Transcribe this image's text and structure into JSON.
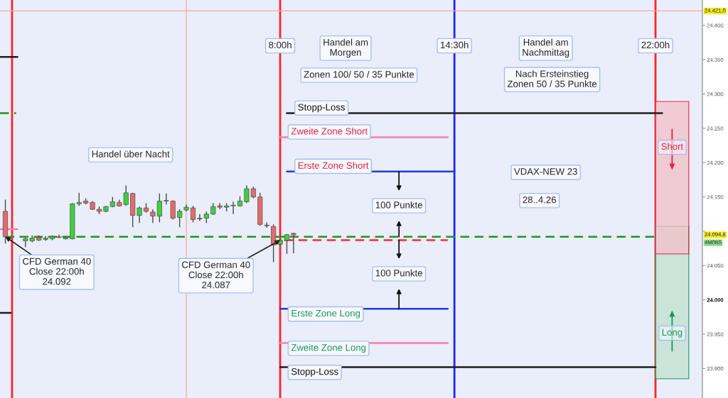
{
  "chart_data": {
    "type": "candlestick",
    "x": [
      -2.25,
      -1.5,
      -1.25,
      -1,
      -0.75,
      -0.5,
      -0.25,
      0,
      0.25,
      0.5,
      0.75,
      1,
      1.25,
      1.5,
      1.75,
      2,
      2.25,
      2.5,
      2.75,
      3,
      3.25,
      3.5,
      3.75,
      4,
      4.25,
      4.5,
      4.75,
      5,
      5.25,
      5.5,
      5.75,
      6,
      6.25,
      6.5,
      6.75,
      7,
      7.25,
      7.5,
      7.75,
      8,
      8.25,
      8.5
    ],
    "ohlc": [
      [
        24129,
        24146,
        24082,
        24092
      ],
      [
        24086,
        24091,
        24077,
        24089
      ],
      [
        24086,
        24094,
        24084,
        24090
      ],
      [
        24091,
        24094,
        24086,
        24087
      ],
      [
        24088,
        24093,
        24086,
        24090
      ],
      [
        24089,
        24094,
        24087,
        24092
      ],
      [
        24092,
        24095,
        24090,
        24091
      ],
      [
        24089,
        24093,
        24088,
        24091
      ],
      [
        24089,
        24141,
        24088,
        24140
      ],
      [
        24140,
        24156,
        24137,
        24142
      ],
      [
        24144,
        24148,
        24139,
        24141
      ],
      [
        24142,
        24144,
        24131,
        24132
      ],
      [
        24132,
        24136,
        24125,
        24129
      ],
      [
        24129,
        24137,
        24128,
        24136
      ],
      [
        24136,
        24150,
        24135,
        24143
      ],
      [
        24142,
        24146,
        24136,
        24137
      ],
      [
        24139,
        24167,
        24137,
        24156
      ],
      [
        24155,
        24156,
        24106,
        24123
      ],
      [
        24123,
        24136,
        24112,
        24134
      ],
      [
        24134,
        24141,
        24127,
        24129
      ],
      [
        24128,
        24132,
        24112,
        24122
      ],
      [
        24122,
        24155,
        24113,
        24144
      ],
      [
        24145,
        24155,
        24139,
        24144
      ],
      [
        24144,
        24145,
        24117,
        24119
      ],
      [
        24120,
        24132,
        24106,
        24129
      ],
      [
        24131,
        24139,
        24129,
        24135
      ],
      [
        24134,
        24137,
        24113,
        24117
      ],
      [
        24119,
        24125,
        24115,
        24118
      ],
      [
        24119,
        24129,
        24112,
        24125
      ],
      [
        24125,
        24141,
        24124,
        24136
      ],
      [
        24137,
        24141,
        24132,
        24135
      ],
      [
        24135,
        24141,
        24129,
        24137
      ],
      [
        24137,
        24143,
        24125,
        24138
      ],
      [
        24137,
        24151,
        24136,
        24144
      ],
      [
        24143,
        24167,
        24141,
        24162
      ],
      [
        24162,
        24165,
        24148,
        24150
      ],
      [
        24150,
        24156,
        24108,
        24110
      ],
      [
        24109,
        24113,
        24105,
        24108
      ],
      [
        24107,
        24110,
        24055,
        24080
      ],
      [
        24081,
        24088,
        24079,
        24087
      ],
      [
        24087,
        24096,
        24067,
        24095
      ],
      [
        24097,
        24098,
        24068,
        24094.8
      ]
    ],
    "colors": [
      "#e46b6b",
      "#3fcf3f",
      "#3fcf3f",
      "#e46b6b",
      "#3fcf3f",
      "#3fcf3f",
      "#e46b6b",
      "#3fcf3f",
      "#3fcf3f",
      "#3fcf3f",
      "#e46b6b",
      "#e46b6b",
      "#e46b6b",
      "#3fcf3f",
      "#3fcf3f",
      "#e46b6b",
      "#3fcf3f",
      "#e46b6b",
      "#3fcf3f",
      "#e46b6b",
      "#e46b6b",
      "#3fcf3f",
      "#e46b6b",
      "#e46b6b",
      "#3fcf3f",
      "#3fcf3f",
      "#e46b6b",
      "#e46b6b",
      "#3fcf3f",
      "#3fcf3f",
      "#e46b6b",
      "#3fcf3f",
      "#3fcf3f",
      "#3fcf3f",
      "#3fcf3f",
      "#e46b6b",
      "#e46b6b",
      "#e46b6b",
      "#e46b6b",
      "#3fcf3f",
      "#3fcf3f",
      "#e46b6b"
    ],
    "xlim": [
      -2.45,
      23.75
    ],
    "ylim": [
      23857,
      24437
    ],
    "yticks": [
      {
        "value": 23900,
        "label": "23.900"
      },
      {
        "value": 23950,
        "label": "23.950"
      },
      {
        "value": 24000,
        "label": "24.000"
      },
      {
        "value": 24050,
        "label": "24.050"
      },
      {
        "value": 24100,
        "label": null
      },
      {
        "value": 24150,
        "label": "24.150"
      },
      {
        "value": 24200,
        "label": "24.200"
      },
      {
        "value": 24250,
        "label": "24.250"
      },
      {
        "value": 24300,
        "label": "24.300"
      },
      {
        "value": 24350,
        "label": "24.350"
      },
      {
        "value": 24400,
        "label": "24.400"
      }
    ],
    "tick_labels": "y",
    "ref_lines": [
      {
        "axis": "x",
        "value": -2,
        "color": "#ff2424"
      },
      {
        "axis": "x",
        "value": 4.5,
        "color": "#f6a9a9"
      },
      {
        "axis": "x",
        "value": 8,
        "label": "8:00h",
        "color": "#ff2424"
      },
      {
        "axis": "x",
        "value": 14.5,
        "label": "14:30h",
        "color": "#2424f0"
      },
      {
        "axis": "x",
        "value": 22,
        "label": "22:00h",
        "color": "#ff2424"
      },
      {
        "axis": "y",
        "value": 24421,
        "label": "24.421,0",
        "color": "#f6a9a9"
      }
    ],
    "series": [
      {
        "type": "line",
        "color": "#1e1e1e",
        "x": [
          8.25,
          22.25
        ],
        "values": [
          24272,
          24272
        ]
      },
      {
        "type": "line",
        "color": "#f77fae",
        "x": [
          8,
          14.25
        ],
        "values": [
          24237,
          24237
        ]
      },
      {
        "type": "line",
        "color": "#1f3ae0",
        "x": [
          8.25,
          14.5
        ],
        "values": [
          24187,
          24187
        ]
      },
      {
        "type": "line",
        "color": "#1e961e",
        "line_style": "dashed",
        "x": [
          -2.25,
          22
        ],
        "values": [
          24092,
          24092
        ]
      },
      {
        "type": "line",
        "color": "#ff2a2a",
        "line_style": "dashed",
        "x": [
          8.15,
          14.25
        ],
        "values": [
          24087,
          24087
        ]
      },
      {
        "type": "line",
        "color": "#1f3ae0",
        "x": [
          8,
          14.25
        ],
        "values": [
          23987,
          23987
        ]
      },
      {
        "type": "line",
        "color": "#f77fae",
        "x": [
          8,
          14.25
        ],
        "values": [
          23937,
          23937
        ]
      },
      {
        "type": "line",
        "color": "#1e1e1e",
        "x": [
          8,
          22
        ],
        "values": [
          23902,
          23902
        ]
      },
      {
        "type": "line",
        "color": "#1e1e1e",
        "x": [
          -2.45,
          -1.8
        ],
        "values": [
          24354,
          24354
        ]
      },
      {
        "type": "line",
        "color": "#1e961e",
        "line_style": "dashed",
        "x": [
          -2.45,
          -1.85
        ],
        "values": [
          24272,
          24272
        ]
      },
      {
        "type": "line",
        "color": "#f77fae",
        "x": [
          -2.45,
          -1.8
        ],
        "values": [
          24103,
          24103
        ]
      },
      {
        "type": "line",
        "color": "#1e1e1e",
        "x": [
          -2.45,
          -2.05
        ],
        "values": [
          23981,
          23981
        ]
      },
      {
        "type": "bar",
        "name": "Long",
        "color": "#c3e2d2",
        "x": [
          22.62
        ],
        "base": [
          23885
        ],
        "values": [
          222
        ]
      },
      {
        "type": "bar",
        "name": "Short",
        "color": "#f2c3ca",
        "x": [
          22.62
        ],
        "base": [
          24067
        ],
        "values": [
          222
        ]
      }
    ],
    "annotations": [
      "Handel über Nacht",
      {
        "text": "CFD German 40\nClose 22:00h\n24.092",
        "x": -2.25,
        "y": 24092
      },
      {
        "text": "CFD German 40\nClose 22:00h\n24.087",
        "x": 8,
        "y": 24087
      },
      "Handel am\nMorgen",
      "Zonen 100/ 50 / 35 Punkte",
      "Handel am\nNachmittag",
      "Nach Ersteinstieg\nZonen 50 / 35 Punkte",
      "VDAX-NEW 23",
      "28..4.26",
      "100 Punkte",
      "100 Punkte",
      "24.094,8",
      "4M08S",
      {
        "text": "Stopp-Loss",
        "x": 8.25,
        "y": 24272
      },
      {
        "text": "Zweite Zone Short",
        "x": 8,
        "y": 24237
      },
      {
        "text": "Erste Zone Short",
        "x": 8.25,
        "y": 24187
      },
      {
        "text": "Erste Zone Long",
        "x": 8,
        "y": 23987
      },
      {
        "text": "Zweite Zone Long",
        "x": 8,
        "y": 23937
      },
      {
        "text": "Stopp-Loss",
        "x": 8,
        "y": 23902
      }
    ]
  }
}
